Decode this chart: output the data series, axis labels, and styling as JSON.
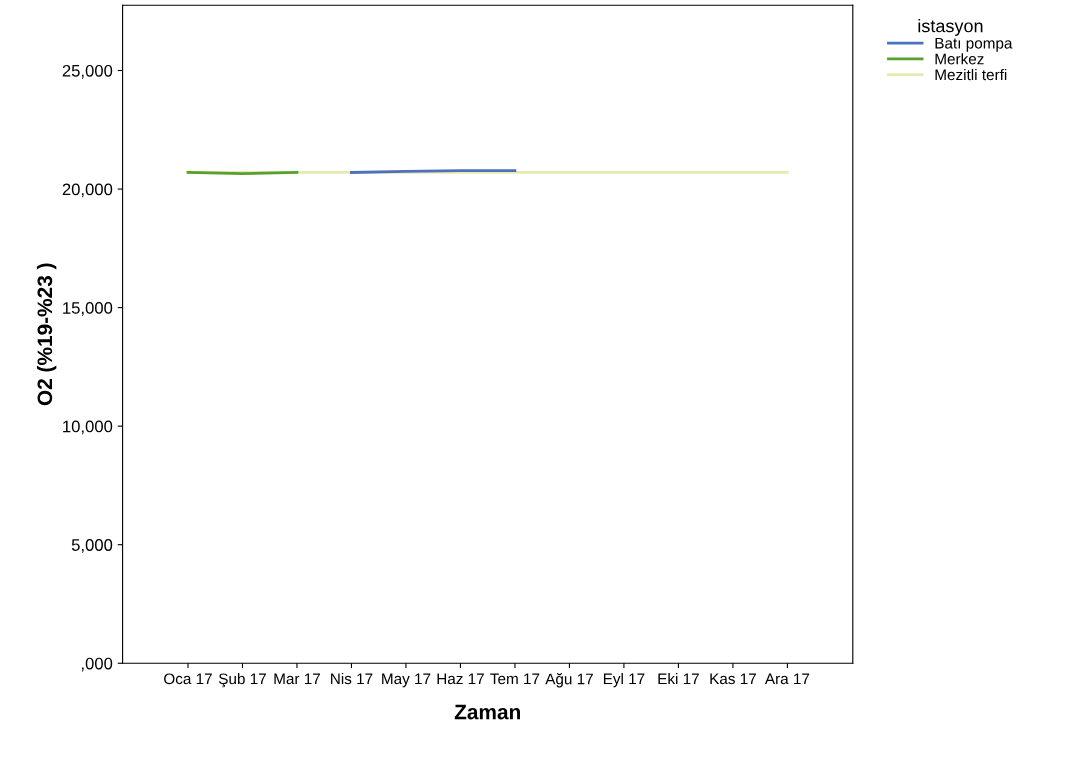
{
  "chart_data": {
    "type": "line",
    "xlabel": "Zaman",
    "ylabel": "O2 (%19-%23 )",
    "legend_title": "istasyon",
    "legend": "top right",
    "grid": false,
    "categories": [
      "Oca 17",
      "Şub 17",
      "Mar 17",
      "Nis 17",
      "May 17",
      "Haz 17",
      "Tem 17",
      "Ağu 17",
      "Eyl 17",
      "Eki 17",
      "Kas 17",
      "Ara 17"
    ],
    "ylim": [
      0,
      27750
    ],
    "yticks": [
      {
        "value": 0,
        "label": ",000"
      },
      {
        "value": 5000,
        "label": "5,000"
      },
      {
        "value": 10000,
        "label": "10,000"
      },
      {
        "value": 15000,
        "label": "15,000"
      },
      {
        "value": 20000,
        "label": "20,000"
      },
      {
        "value": 25000,
        "label": "25,000"
      }
    ],
    "series": [
      {
        "name": "Batı pompa",
        "color": "#4f6fc0",
        "values": [
          null,
          null,
          null,
          20700,
          20750,
          20780,
          20780,
          null,
          null,
          null,
          null,
          null
        ]
      },
      {
        "name": "Merkez",
        "color": "#5aa02c",
        "values": [
          20700,
          20650,
          20700,
          null,
          null,
          null,
          null,
          null,
          null,
          null,
          null,
          null
        ]
      },
      {
        "name": "Mezitli terfi",
        "color": "#e6eab0",
        "values": [
          20700,
          20700,
          20700,
          20700,
          20700,
          20700,
          20700,
          20700,
          20700,
          20700,
          20700,
          20700
        ]
      }
    ]
  }
}
